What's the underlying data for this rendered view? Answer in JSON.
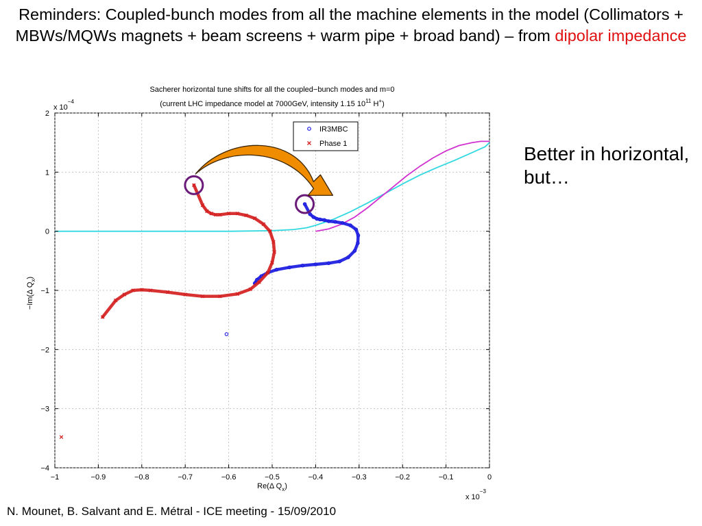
{
  "slide": {
    "title_main": "Reminders: Coupled-bunch modes from all the machine elements in the model (Collimators + MBWs/MQWs magnets + beam screens + warm pipe + broad band) – from ",
    "title_highlight": "dipolar impedance",
    "side_note": "Better in horizontal, but…",
    "footer": "N. Mounet, B. Salvant and E. Métral - ICE meeting - 15/09/2010"
  },
  "colors": {
    "highlight": "#e01010",
    "ir3mbc": "#1a1ae0",
    "phase1": "#d42020",
    "cyan_curve": "#30d8e0",
    "magenta_curve": "#d030d0",
    "arrow": "#f08c00",
    "circle": "#6a1a78"
  },
  "chart_data": {
    "type": "scatter",
    "title_line1": "Sacherer horizontal tune shifts for all the coupled−bunch modes and m=0",
    "title_line2": "(current LHC impedance model at 7000GeV, intensity 1.15 10",
    "title_sup": "11",
    "title_unit": " H",
    "title_unit_sup": "+",
    "title_close": ")",
    "xlabel": "Re(Δ Q",
    "xlabel_sub": "x",
    "xlabel_close": ")",
    "ylabel": "−Im(Δ Q",
    "ylabel_sub": "x",
    "ylabel_close": ")",
    "x_multiplier": "x 10",
    "x_multiplier_exp": "−3",
    "y_multiplier": "x 10",
    "y_multiplier_exp": "−4",
    "xlim": [
      -1.0,
      0.0
    ],
    "ylim": [
      -4.0,
      2.0
    ],
    "xticks": [
      -1,
      -0.9,
      -0.8,
      -0.7,
      -0.6,
      -0.5,
      -0.4,
      -0.3,
      -0.2,
      -0.1,
      0
    ],
    "xtick_labels": [
      "−1",
      "−0.9",
      "−0.8",
      "−0.7",
      "−0.6",
      "−0.5",
      "−0.4",
      "−0.3",
      "−0.2",
      "−0.1",
      "0"
    ],
    "yticks": [
      -4,
      -3,
      -2,
      -1,
      0,
      1,
      2
    ],
    "ytick_labels": [
      "−4",
      "−3",
      "−2",
      "−1",
      "0",
      "1",
      "2"
    ],
    "grid": true,
    "legend_position": "top-center",
    "series": [
      {
        "name": "IR3MBC",
        "marker": "circle",
        "color": "#1a1ae0",
        "x": [
          -0.425,
          -0.413,
          -0.405,
          -0.397,
          -0.39,
          -0.38,
          -0.37,
          -0.355,
          -0.338,
          -0.32,
          -0.307,
          -0.302,
          -0.303,
          -0.31,
          -0.325,
          -0.345,
          -0.37,
          -0.4,
          -0.43,
          -0.46,
          -0.49,
          -0.51,
          -0.525,
          -0.535,
          -0.54,
          -0.605
        ],
        "y": [
          0.46,
          0.29,
          0.24,
          0.21,
          0.2,
          0.19,
          0.17,
          0.16,
          0.14,
          0.1,
          0.03,
          -0.07,
          -0.2,
          -0.33,
          -0.44,
          -0.51,
          -0.54,
          -0.56,
          -0.58,
          -0.61,
          -0.65,
          -0.7,
          -0.76,
          -0.82,
          -0.88,
          -1.74
        ]
      },
      {
        "name": "Phase 1",
        "marker": "x",
        "color": "#d42020",
        "x": [
          -0.68,
          -0.66,
          -0.65,
          -0.64,
          -0.63,
          -0.62,
          -0.6,
          -0.58,
          -0.56,
          -0.54,
          -0.52,
          -0.505,
          -0.497,
          -0.495,
          -0.5,
          -0.51,
          -0.53,
          -0.55,
          -0.58,
          -0.62,
          -0.66,
          -0.7,
          -0.74,
          -0.78,
          -0.8,
          -0.82,
          -0.84,
          -0.86,
          -0.89,
          -0.985
        ],
        "y": [
          0.78,
          0.44,
          0.34,
          0.3,
          0.28,
          0.28,
          0.3,
          0.3,
          0.27,
          0.22,
          0.12,
          0.0,
          -0.18,
          -0.35,
          -0.53,
          -0.7,
          -0.86,
          -0.98,
          -1.06,
          -1.1,
          -1.1,
          -1.07,
          -1.03,
          -1.0,
          -0.99,
          -1.0,
          -1.07,
          -1.17,
          -1.45,
          -3.48
        ]
      }
    ],
    "background_curves": [
      {
        "color": "#30d8e0",
        "x": [
          -1.0,
          -0.6,
          -0.5,
          -0.45,
          -0.42,
          -0.4,
          -0.36,
          -0.32,
          -0.28,
          -0.24,
          -0.2,
          -0.16,
          -0.12,
          -0.08,
          -0.04,
          -0.01,
          0.0
        ],
        "y": [
          0.0,
          0.0,
          0.01,
          0.03,
          0.06,
          0.1,
          0.2,
          0.33,
          0.48,
          0.64,
          0.8,
          0.95,
          1.08,
          1.2,
          1.33,
          1.43,
          1.5
        ]
      },
      {
        "color": "#d030d0",
        "x": [
          -0.4,
          -0.37,
          -0.34,
          -0.31,
          -0.28,
          -0.25,
          -0.22,
          -0.19,
          -0.16,
          -0.13,
          -0.1,
          -0.07,
          -0.04,
          -0.02,
          0.0
        ],
        "y": [
          0.0,
          0.04,
          0.12,
          0.24,
          0.4,
          0.58,
          0.76,
          0.94,
          1.1,
          1.24,
          1.36,
          1.45,
          1.5,
          1.52,
          1.52
        ]
      }
    ],
    "annotations": [
      {
        "kind": "circle-marker",
        "x": -0.68,
        "y": 0.78
      },
      {
        "kind": "circle-marker",
        "x": -0.425,
        "y": 0.46
      },
      {
        "kind": "curved-arrow",
        "from_x": -0.67,
        "from_y": 1.2,
        "to_x": -0.37,
        "to_y": 0.7
      }
    ]
  }
}
